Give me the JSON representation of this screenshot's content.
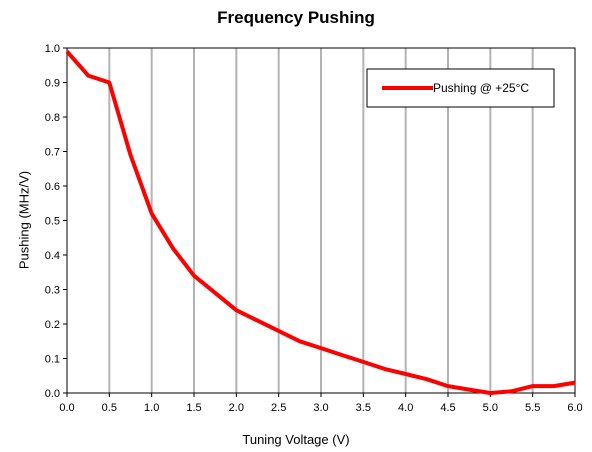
{
  "chart_data": {
    "type": "line",
    "title": "Frequency Pushing",
    "xlabel": "Tuning Voltage (V)",
    "ylabel": "Pushing (MHz/V)",
    "xlim": [
      0,
      6
    ],
    "ylim": [
      0,
      1
    ],
    "x_ticks": [
      "0.0",
      "0.5",
      "1.0",
      "1.5",
      "2.0",
      "2.5",
      "3.0",
      "3.5",
      "4.0",
      "4.5",
      "5.0",
      "5.5",
      "6.0"
    ],
    "y_ticks": [
      "0.0",
      "0.1",
      "0.2",
      "0.3",
      "0.4",
      "0.5",
      "0.6",
      "0.7",
      "0.8",
      "0.9",
      "1.0"
    ],
    "x_grid": true,
    "y_grid": false,
    "legend_position": "top-right",
    "series": [
      {
        "name": "Pushing @ +25°C",
        "color": "#ff0000",
        "x": [
          0,
          0.25,
          0.5,
          0.75,
          1.0,
          1.25,
          1.5,
          1.75,
          2.0,
          2.25,
          2.5,
          2.75,
          3.0,
          3.25,
          3.5,
          3.75,
          4.0,
          4.25,
          4.5,
          4.75,
          5.0,
          5.25,
          5.5,
          5.75,
          6.0
        ],
        "y": [
          0.99,
          0.92,
          0.9,
          0.69,
          0.52,
          0.42,
          0.34,
          0.29,
          0.24,
          0.21,
          0.18,
          0.15,
          0.13,
          0.11,
          0.09,
          0.07,
          0.055,
          0.04,
          0.02,
          0.01,
          0.0,
          0.005,
          0.02,
          0.02,
          0.03
        ]
      }
    ]
  }
}
